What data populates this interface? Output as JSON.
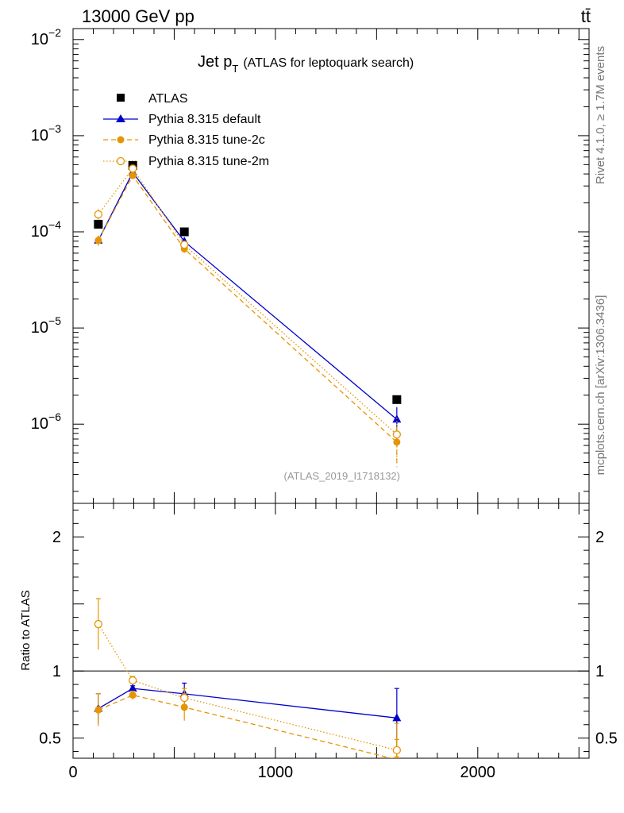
{
  "header": {
    "left": "13000 GeV pp",
    "right": "tt̄"
  },
  "side_labels": {
    "top": "Rivet 4.1.0, ≥ 1.7M events",
    "bottom": "mcplots.cern.ch [arXiv:1306.3436]"
  },
  "chart_data": {
    "type": "line",
    "title": "Jet p",
    "title_sub": "T",
    "title_rest": "(ATLAS for leptoquark search)",
    "watermark": "(ATLAS_2019_I1718132)",
    "x": [
      125,
      295,
      550,
      1600
    ],
    "xlim": [
      0,
      2550
    ],
    "x_ticks": [
      0,
      1000,
      2000
    ],
    "x_tick_labels": [
      "0",
      "1000",
      "2000"
    ],
    "main": {
      "yscale": "log",
      "ylim": [
        1.5e-07,
        0.013
      ],
      "y_ticks": [
        {
          "base": "10",
          "exp": "−2"
        },
        {
          "base": "10",
          "exp": "−3"
        },
        {
          "base": "10",
          "exp": "−4"
        },
        {
          "base": "10",
          "exp": "−5"
        },
        {
          "base": "10",
          "exp": "−6"
        }
      ],
      "y_tick_values": [
        0.01,
        0.001,
        0.0001,
        1e-05,
        1e-06
      ]
    },
    "ratio": {
      "ylabel": "Ratio to ATLAS",
      "ylim": [
        0.35,
        2.25
      ],
      "y_tick_values": [
        0.5,
        1,
        2
      ],
      "y_tick_labels": [
        "0.5",
        "1",
        "2"
      ]
    },
    "series": [
      {
        "name": "ATLAS",
        "color": "#000000",
        "marker": "square",
        "values": [
          0.00012,
          0.00049,
          0.0001,
          1.8e-06
        ],
        "ratio": [
          1,
          1,
          1,
          1
        ]
      },
      {
        "name": "Pythia 8.315 default",
        "color": "#0000cc",
        "marker": "triangle",
        "linestyle": "solid",
        "values": [
          8.15e-05,
          0.000415,
          7.95e-05,
          1.12e-06
        ],
        "errors_rel": [
          0.11,
          0.02,
          0.08,
          0.34
        ],
        "ratio": [
          0.72,
          0.87,
          0.83,
          0.65
        ],
        "ratio_err": [
          0.11,
          0.02,
          0.08,
          0.22
        ]
      },
      {
        "name": "Pythia 8.315 tune-2c",
        "color": "#e69500",
        "marker": "circle-filled",
        "linestyle": "dashed",
        "values": [
          8.15e-05,
          0.000385,
          6.65e-05,
          6.5e-07
        ],
        "errors_rel": [
          0.12,
          0.03,
          0.1,
          0.45
        ],
        "ratio": [
          0.71,
          0.82,
          0.73,
          0.34
        ],
        "ratio_err": [
          0.12,
          0.03,
          0.1,
          0.15
        ]
      },
      {
        "name": "Pythia 8.315 tune-2m",
        "color": "#e69500",
        "marker": "circle-open",
        "linestyle": "dotted",
        "values": [
          0.000152,
          0.000455,
          7.35e-05,
          7.8e-07
        ],
        "errors_rel": [
          0.14,
          0.02,
          0.08,
          0.5
        ],
        "ratio": [
          1.35,
          0.93,
          0.8,
          0.41
        ],
        "ratio_err": [
          0.19,
          0.03,
          0.07,
          0.2
        ]
      }
    ]
  }
}
